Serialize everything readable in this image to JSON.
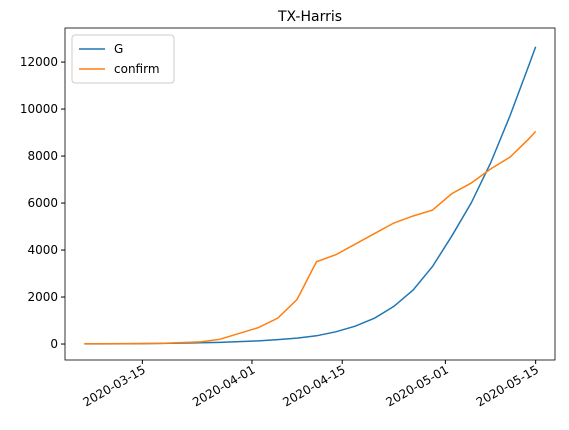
{
  "chart_data": {
    "type": "line",
    "title": "TX-Harris",
    "x": [
      "2020-03-06",
      "2020-03-09",
      "2020-03-12",
      "2020-03-15",
      "2020-03-18",
      "2020-03-21",
      "2020-03-24",
      "2020-03-27",
      "2020-03-30",
      "2020-04-02",
      "2020-04-05",
      "2020-04-08",
      "2020-04-11",
      "2020-04-14",
      "2020-04-17",
      "2020-04-20",
      "2020-04-23",
      "2020-04-26",
      "2020-04-29",
      "2020-05-02",
      "2020-05-05",
      "2020-05-08",
      "2020-05-11",
      "2020-05-14",
      "2020-05-15"
    ],
    "series": [
      {
        "name": "G",
        "color": "#1f77b4",
        "values": [
          5,
          8,
          12,
          18,
          26,
          37,
          52,
          72,
          100,
          135,
          185,
          250,
          350,
          520,
          760,
          1100,
          1600,
          2300,
          3300,
          4600,
          6000,
          7700,
          9700,
          11900,
          12650
        ]
      },
      {
        "name": "confirm",
        "color": "#ff7f0e",
        "values": [
          10,
          12,
          15,
          20,
          30,
          60,
          90,
          200,
          450,
          700,
          1100,
          1900,
          3500,
          3800,
          4250,
          4700,
          5150,
          5450,
          5700,
          6400,
          6850,
          7450,
          7950,
          8750,
          9050
        ]
      }
    ],
    "xlim": [
      "2020-03-03",
      "2020-05-18"
    ],
    "xticks": [
      "2020-03-15",
      "2020-04-01",
      "2020-04-15",
      "2020-05-01",
      "2020-05-15"
    ],
    "ylim": [
      -680,
      13450
    ],
    "yticks": [
      0,
      2000,
      4000,
      6000,
      8000,
      10000,
      12000
    ],
    "legend": "upper left"
  }
}
